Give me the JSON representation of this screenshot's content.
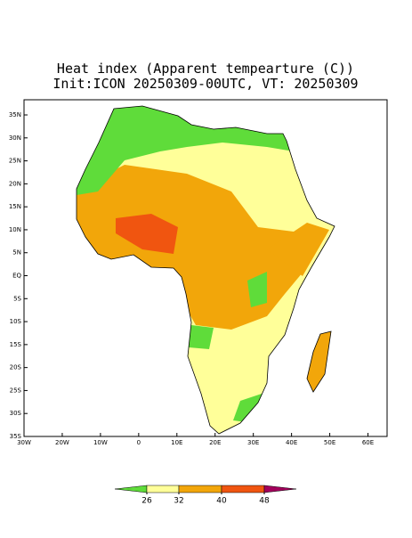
{
  "map": {
    "title": "Heat index (Apparent tempearture (C))",
    "subtitle": "Init:ICON 20250309-00UTC, VT: 20250309",
    "xlim": [
      -30,
      65
    ],
    "ylim": [
      -35,
      38.3
    ],
    "xticks": [
      {
        "value": -30,
        "label": "30W"
      },
      {
        "value": -20,
        "label": "20W"
      },
      {
        "value": -10,
        "label": "10W"
      },
      0,
      {
        "value": 10,
        "label": "10E"
      },
      {
        "value": 20,
        "label": "20E"
      },
      {
        "value": 30,
        "label": "30E"
      },
      {
        "value": 40,
        "label": "40E"
      },
      {
        "value": 50,
        "label": "50E"
      },
      {
        "value": 60,
        "label": "60E"
      }
    ],
    "yticks": [
      {
        "value": 35,
        "label": "35N"
      },
      {
        "value": 30,
        "label": "30N"
      },
      {
        "value": 25,
        "label": "25N"
      },
      {
        "value": 20,
        "label": "20N"
      },
      {
        "value": 15,
        "label": "15N"
      },
      {
        "value": 10,
        "label": "10N"
      },
      {
        "value": 5,
        "label": "5N"
      },
      {
        "value": 0,
        "label": "EQ"
      },
      {
        "value": -5,
        "label": "5S"
      },
      {
        "value": -10,
        "label": "10S"
      },
      {
        "value": -15,
        "label": "15S"
      },
      {
        "value": -20,
        "label": "20S"
      },
      {
        "value": -25,
        "label": "25S"
      },
      {
        "value": -30,
        "label": "30S"
      },
      {
        "value": -35,
        "label": "35S"
      }
    ],
    "colorbar": {
      "levels": [
        26,
        32,
        40,
        48
      ],
      "colors": [
        "#5fdc3a",
        "#ffff99",
        "#f2a60a",
        "#f05510",
        "#a3005c"
      ]
    }
  }
}
